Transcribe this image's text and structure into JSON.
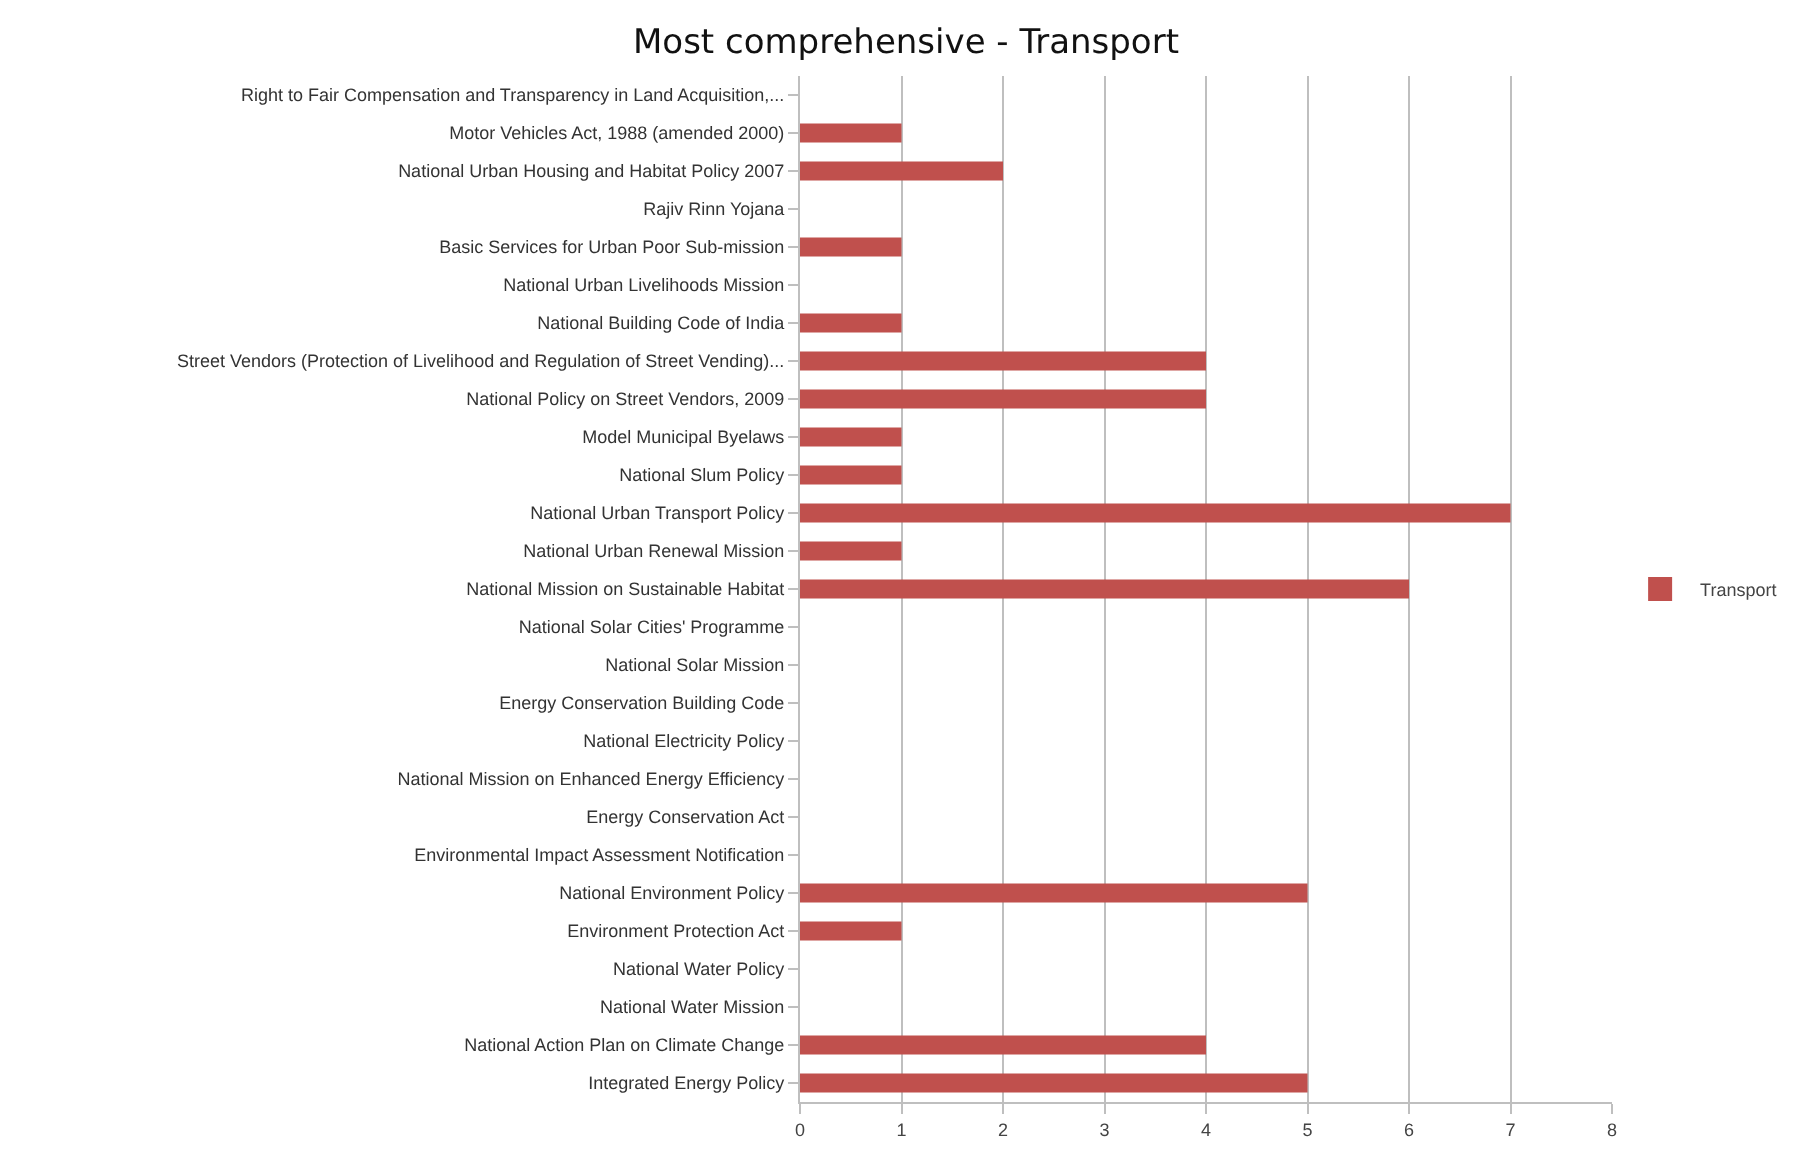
{
  "chart_data": {
    "type": "bar",
    "orientation": "horizontal",
    "title": "Most comprehensive - Transport",
    "categories": [
      "Right to Fair Compensation and Transparency in Land Acquisition,...",
      "Motor Vehicles Act, 1988 (amended 2000)",
      "National Urban Housing and Habitat Policy 2007",
      "Rajiv Rinn Yojana",
      "Basic Services for Urban Poor Sub-mission",
      "National Urban Livelihoods Mission",
      "National Building Code of India",
      "Street Vendors (Protection of Livelihood and Regulation of Street Vending)...",
      "National Policy on Street Vendors, 2009",
      "Model Municipal Byelaws",
      "National Slum Policy",
      "National Urban Transport Policy",
      "National Urban Renewal Mission",
      "National Mission on Sustainable Habitat",
      "National Solar Cities' Programme",
      "National Solar Mission",
      "Energy Conservation Building Code",
      "National Electricity Policy",
      "National Mission on Enhanced Energy Efficiency",
      "Energy Conservation Act",
      "Environmental Impact Assessment Notification",
      "National Environment Policy",
      "Environment Protection Act",
      "National Water Policy",
      "National Water Mission",
      "National Action Plan on Climate Change",
      "Integrated Energy Policy"
    ],
    "series": [
      {
        "name": "Transport",
        "color": "#c0504d",
        "values": [
          0,
          1,
          2,
          0,
          1,
          0,
          1,
          4,
          4,
          1,
          1,
          7,
          1,
          6,
          0,
          0,
          0,
          0,
          0,
          0,
          0,
          5,
          1,
          0,
          0,
          4,
          5
        ]
      }
    ],
    "xlim": [
      0,
      8
    ],
    "xticks": [
      0,
      1,
      2,
      3,
      4,
      5,
      6,
      7,
      8
    ],
    "grid": "x",
    "legend": "right"
  }
}
